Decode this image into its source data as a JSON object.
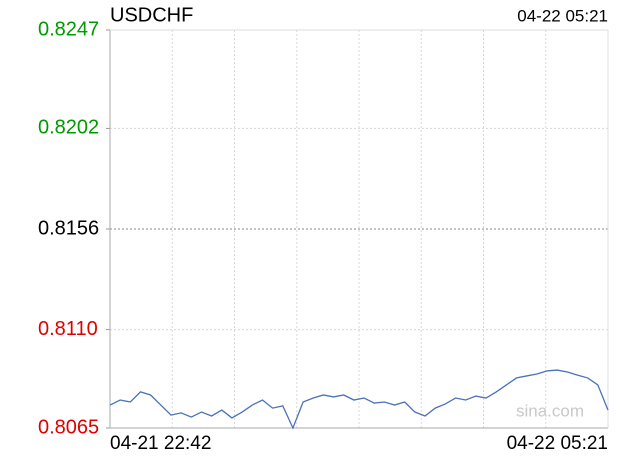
{
  "chart_data": {
    "type": "line",
    "title": "USDCHF",
    "timestamp": "04-22 05:21",
    "watermark": "sina.com",
    "categories": [
      "04-21 22:42",
      null,
      null,
      null,
      null,
      null,
      null,
      null,
      null,
      null,
      null,
      null,
      null,
      null,
      null,
      null,
      null,
      null,
      null,
      null,
      null,
      null,
      null,
      null,
      null,
      null,
      null,
      null,
      null,
      null,
      null,
      null,
      null,
      null,
      null,
      null,
      null,
      null,
      null,
      null,
      null,
      null,
      null,
      null,
      null,
      null,
      null,
      null,
      null,
      "04-22 05:21"
    ],
    "series": [
      {
        "name": "USDCHF",
        "color": "#4a72b8",
        "values": [
          0.80755,
          0.80778,
          0.80769,
          0.80815,
          0.80801,
          0.80755,
          0.80709,
          0.80719,
          0.807,
          0.80723,
          0.80705,
          0.80732,
          0.80696,
          0.80723,
          0.80755,
          0.80778,
          0.80741,
          0.80751,
          0.8065,
          0.80769,
          0.80787,
          0.80801,
          0.80792,
          0.80801,
          0.80778,
          0.80787,
          0.80764,
          0.80769,
          0.80755,
          0.80769,
          0.80723,
          0.80705,
          0.80741,
          0.8076,
          0.80787,
          0.80778,
          0.80796,
          0.80787,
          0.80815,
          0.80847,
          0.80879,
          0.80888,
          0.80897,
          0.80911,
          0.80915,
          0.80906,
          0.80892,
          0.80879,
          0.80847,
          0.80732
        ]
      }
    ],
    "ylim": [
      0.8065,
      0.8247
    ],
    "yticks": [
      0.8065,
      {
        "value": 0.811,
        "label": "0.8110"
      },
      0.8156,
      0.8202,
      0.8247
    ],
    "up_color": "#009900",
    "down_color": "#e00000",
    "grid": true
  }
}
